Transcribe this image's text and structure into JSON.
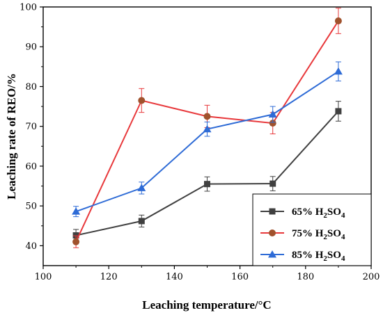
{
  "chart_data": {
    "type": "line",
    "xlabel": "Leaching temperature/°C",
    "ylabel": "Leaching rate of REO/%",
    "xlim": [
      100,
      200
    ],
    "ylim": [
      35,
      100
    ],
    "xticks": [
      100,
      120,
      140,
      160,
      180,
      200
    ],
    "yticks": [
      40,
      50,
      60,
      70,
      80,
      90,
      100
    ],
    "grid": false,
    "legend_position": "bottom-right",
    "series": [
      {
        "name": "65% H2SO4",
        "legend_parts": {
          "pre": "65% H",
          "sub1": "2",
          "mid": "SO",
          "sub2": "4"
        },
        "color": "#404040",
        "marker": "square",
        "x": [
          110,
          130,
          150,
          170,
          190
        ],
        "y": [
          42.6,
          46.2,
          55.5,
          55.6,
          73.8
        ],
        "err": [
          1.5,
          1.5,
          1.8,
          1.8,
          2.5
        ]
      },
      {
        "name": "75% H2SO4",
        "legend_parts": {
          "pre": "75% H",
          "sub1": "2",
          "mid": "SO",
          "sub2": "4"
        },
        "color": "#e8383b",
        "marker_color": "#a0522d",
        "marker": "circle",
        "x": [
          110,
          130,
          150,
          170,
          190
        ],
        "y": [
          41.0,
          76.5,
          72.5,
          70.8,
          96.5
        ],
        "err": [
          1.5,
          3.0,
          2.8,
          2.7,
          3.2
        ]
      },
      {
        "name": "85% H2SO4",
        "legend_parts": {
          "pre": "85%  H",
          "sub1": "2",
          "mid": "SO",
          "sub2": "4"
        },
        "color": "#2e6bd6",
        "marker": "triangle",
        "x": [
          110,
          130,
          150,
          170,
          190
        ],
        "y": [
          48.6,
          54.5,
          69.3,
          73.0,
          83.8
        ],
        "err": [
          1.3,
          1.5,
          1.8,
          2.0,
          2.4
        ]
      }
    ]
  }
}
